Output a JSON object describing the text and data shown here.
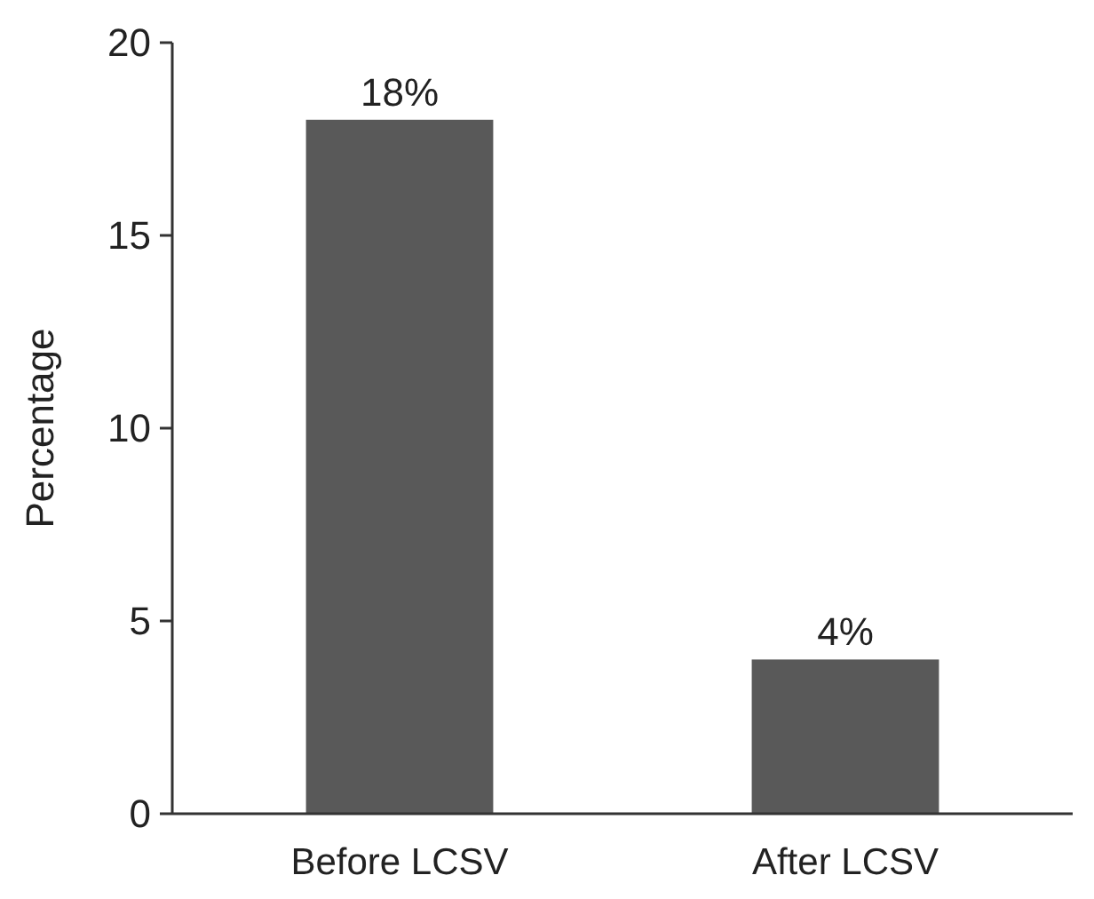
{
  "chart_data": {
    "type": "bar",
    "ylabel": "Percentage",
    "categories": [
      "Before LCSV",
      "After LCSV"
    ],
    "values": [
      18,
      4
    ],
    "value_labels": [
      "18%",
      "4%"
    ],
    "color": "#595959",
    "ylim": [
      0,
      20
    ],
    "yticks": [
      0,
      5,
      10,
      15,
      20
    ],
    "grid": false
  }
}
